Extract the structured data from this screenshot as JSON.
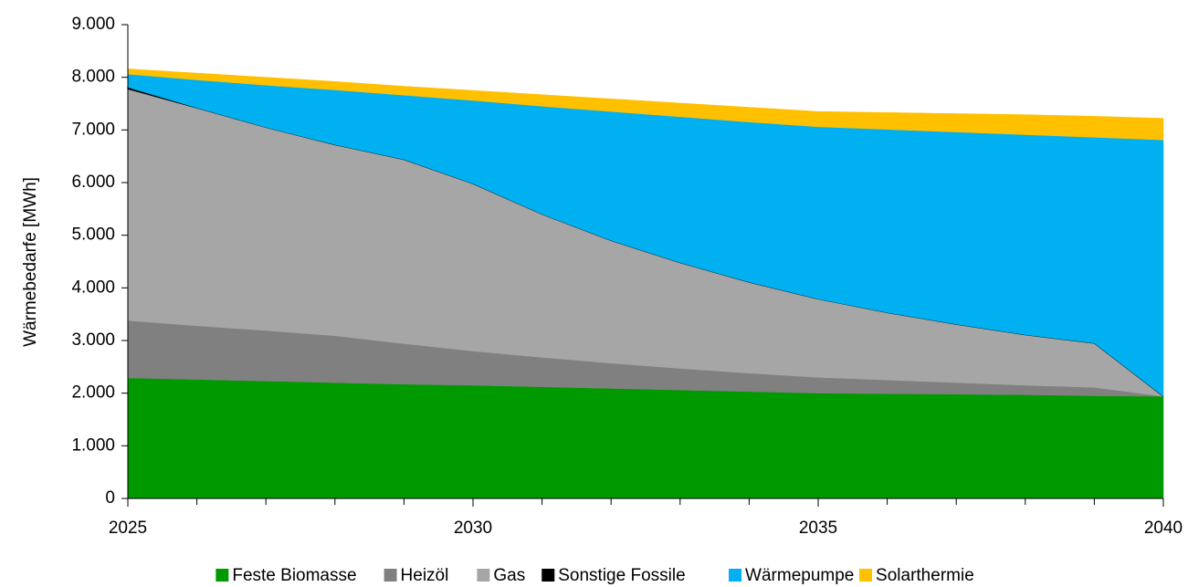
{
  "chart_data": {
    "type": "stacked_area",
    "ylabel": "Wärmebedarfe [MWh]",
    "x": [
      2025,
      2026,
      2027,
      2028,
      2029,
      2030,
      2031,
      2032,
      2033,
      2034,
      2035,
      2036,
      2037,
      2038,
      2039,
      2040
    ],
    "xlim": [
      2025,
      2040
    ],
    "xticks": [
      2025,
      2030,
      2035,
      2040
    ],
    "ylim": [
      0,
      9000
    ],
    "yticks": [
      0,
      {
        "value": 1000,
        "label": "1.000"
      },
      {
        "value": 2000,
        "label": "2.000"
      },
      {
        "value": 3000,
        "label": "3.000"
      },
      {
        "value": 4000,
        "label": "4.000"
      },
      {
        "value": 5000,
        "label": "5.000"
      },
      {
        "value": 6000,
        "label": "6.000"
      },
      {
        "value": 7000,
        "label": "7.000"
      },
      {
        "value": 8000,
        "label": "8.000"
      },
      {
        "value": 9000,
        "label": "9.000"
      }
    ],
    "grid": false,
    "legend": "bottom",
    "series": [
      {
        "name": "Feste Biomasse",
        "color": "#009900",
        "values": [
          2290,
          2260,
          2230,
          2200,
          2170,
          2150,
          2120,
          2090,
          2060,
          2030,
          2000,
          1990,
          1980,
          1970,
          1950,
          1940
        ]
      },
      {
        "name": "Heizöl",
        "color": "#808080",
        "values": [
          1090,
          1020,
          960,
          890,
          770,
          650,
          560,
          480,
          410,
          350,
          300,
          260,
          220,
          180,
          160,
          0
        ]
      },
      {
        "name": "Gas",
        "color": "#a6a6a6",
        "values": [
          4400,
          4140,
          3860,
          3630,
          3500,
          3180,
          2720,
          2330,
          2010,
          1730,
          1490,
          1280,
          1110,
          960,
          840,
          0
        ]
      },
      {
        "name": "Sonstige Fossile",
        "color": "#000000",
        "values": [
          30,
          0,
          0,
          0,
          0,
          0,
          0,
          0,
          0,
          0,
          0,
          0,
          0,
          0,
          0,
          0
        ]
      },
      {
        "name": "Wärmepumpe",
        "color": "#00b0f0",
        "values": [
          250,
          530,
          800,
          1040,
          1220,
          1580,
          2050,
          2450,
          2770,
          3040,
          3270,
          3480,
          3650,
          3800,
          3910,
          4870
        ]
      },
      {
        "name": "Solarthermie",
        "color": "#ffc000",
        "values": [
          100,
          130,
          150,
          160,
          170,
          190,
          220,
          240,
          260,
          280,
          290,
          320,
          350,
          380,
          400,
          410
        ]
      }
    ]
  }
}
